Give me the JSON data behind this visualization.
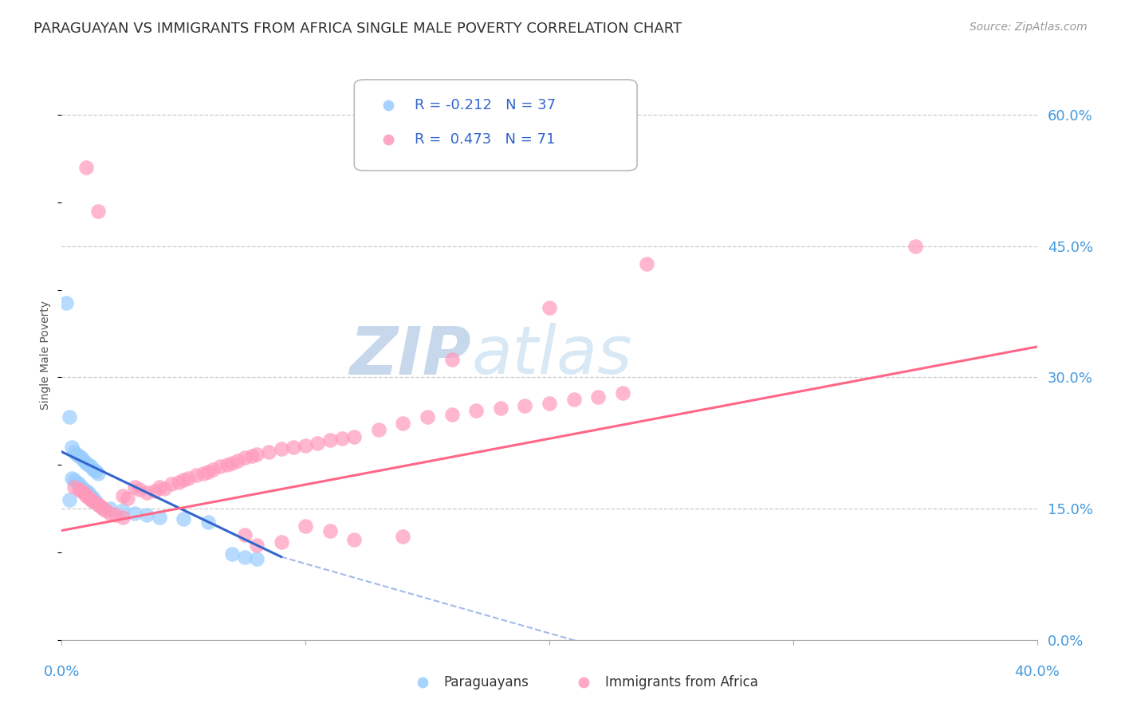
{
  "title": "PARAGUAYAN VS IMMIGRANTS FROM AFRICA SINGLE MALE POVERTY CORRELATION CHART",
  "source": "Source: ZipAtlas.com",
  "ylabel": "Single Male Poverty",
  "ytick_labels": [
    "0.0%",
    "15.0%",
    "30.0%",
    "45.0%",
    "60.0%"
  ],
  "ytick_values": [
    0.0,
    0.15,
    0.3,
    0.45,
    0.6
  ],
  "xtick_labels": [
    "0.0%",
    "40.0%"
  ],
  "xlim": [
    0.0,
    0.4
  ],
  "ylim": [
    0.0,
    0.65
  ],
  "blue_color": "#99CCFF",
  "pink_color": "#FF99BB",
  "blue_line_color": "#3366CC",
  "pink_line_color": "#FF6688",
  "grid_color": "#CCCCCC",
  "title_fontsize": 13,
  "source_fontsize": 10,
  "axis_label_fontsize": 10,
  "tick_fontsize": 13,
  "legend_fontsize": 13,
  "watermark_fontsize": 60,
  "watermark_color": "#E0E8F8",
  "background_color": "#FFFFFF",
  "blue_pts": [
    [
      0.002,
      0.385
    ],
    [
      0.003,
      0.255
    ],
    [
      0.004,
      0.22
    ],
    [
      0.005,
      0.215
    ],
    [
      0.006,
      0.212
    ],
    [
      0.007,
      0.21
    ],
    [
      0.008,
      0.208
    ],
    [
      0.009,
      0.205
    ],
    [
      0.01,
      0.202
    ],
    [
      0.011,
      0.2
    ],
    [
      0.012,
      0.198
    ],
    [
      0.013,
      0.195
    ],
    [
      0.014,
      0.193
    ],
    [
      0.015,
      0.19
    ],
    [
      0.004,
      0.185
    ],
    [
      0.005,
      0.183
    ],
    [
      0.006,
      0.18
    ],
    [
      0.007,
      0.178
    ],
    [
      0.008,
      0.175
    ],
    [
      0.009,
      0.172
    ],
    [
      0.01,
      0.17
    ],
    [
      0.011,
      0.168
    ],
    [
      0.012,
      0.165
    ],
    [
      0.013,
      0.162
    ],
    [
      0.003,
      0.16
    ],
    [
      0.014,
      0.158
    ],
    [
      0.015,
      0.155
    ],
    [
      0.02,
      0.15
    ],
    [
      0.025,
      0.148
    ],
    [
      0.03,
      0.145
    ],
    [
      0.035,
      0.143
    ],
    [
      0.04,
      0.14
    ],
    [
      0.05,
      0.138
    ],
    [
      0.06,
      0.135
    ],
    [
      0.07,
      0.098
    ],
    [
      0.075,
      0.095
    ],
    [
      0.08,
      0.093
    ]
  ],
  "pink_pts": [
    [
      0.01,
      0.54
    ],
    [
      0.015,
      0.49
    ],
    [
      0.005,
      0.175
    ],
    [
      0.007,
      0.172
    ],
    [
      0.008,
      0.17
    ],
    [
      0.009,
      0.168
    ],
    [
      0.01,
      0.165
    ],
    [
      0.011,
      0.163
    ],
    [
      0.012,
      0.16
    ],
    [
      0.013,
      0.158
    ],
    [
      0.015,
      0.155
    ],
    [
      0.016,
      0.153
    ],
    [
      0.017,
      0.15
    ],
    [
      0.018,
      0.148
    ],
    [
      0.02,
      0.145
    ],
    [
      0.022,
      0.143
    ],
    [
      0.025,
      0.165
    ],
    [
      0.027,
      0.162
    ],
    [
      0.03,
      0.175
    ],
    [
      0.032,
      0.172
    ],
    [
      0.035,
      0.168
    ],
    [
      0.038,
      0.17
    ],
    [
      0.04,
      0.175
    ],
    [
      0.042,
      0.173
    ],
    [
      0.045,
      0.178
    ],
    [
      0.048,
      0.18
    ],
    [
      0.05,
      0.183
    ],
    [
      0.052,
      0.185
    ],
    [
      0.055,
      0.188
    ],
    [
      0.058,
      0.19
    ],
    [
      0.06,
      0.192
    ],
    [
      0.062,
      0.195
    ],
    [
      0.065,
      0.198
    ],
    [
      0.068,
      0.2
    ],
    [
      0.07,
      0.202
    ],
    [
      0.072,
      0.205
    ],
    [
      0.075,
      0.208
    ],
    [
      0.078,
      0.21
    ],
    [
      0.08,
      0.212
    ],
    [
      0.085,
      0.215
    ],
    [
      0.09,
      0.218
    ],
    [
      0.095,
      0.22
    ],
    [
      0.1,
      0.222
    ],
    [
      0.105,
      0.225
    ],
    [
      0.11,
      0.228
    ],
    [
      0.115,
      0.23
    ],
    [
      0.12,
      0.232
    ],
    [
      0.13,
      0.24
    ],
    [
      0.14,
      0.248
    ],
    [
      0.15,
      0.255
    ],
    [
      0.16,
      0.258
    ],
    [
      0.17,
      0.262
    ],
    [
      0.18,
      0.265
    ],
    [
      0.19,
      0.268
    ],
    [
      0.2,
      0.27
    ],
    [
      0.21,
      0.275
    ],
    [
      0.22,
      0.278
    ],
    [
      0.23,
      0.282
    ],
    [
      0.16,
      0.32
    ],
    [
      0.2,
      0.38
    ],
    [
      0.24,
      0.43
    ],
    [
      0.35,
      0.45
    ],
    [
      0.075,
      0.12
    ],
    [
      0.1,
      0.13
    ],
    [
      0.12,
      0.115
    ],
    [
      0.14,
      0.118
    ],
    [
      0.08,
      0.108
    ],
    [
      0.09,
      0.112
    ],
    [
      0.11,
      0.125
    ],
    [
      0.025,
      0.14
    ]
  ],
  "blue_line": [
    [
      0.0,
      0.215
    ],
    [
      0.09,
      0.095
    ]
  ],
  "blue_line_dash": [
    [
      0.09,
      0.095
    ],
    [
      0.26,
      -0.04
    ]
  ],
  "pink_line": [
    [
      0.0,
      0.125
    ],
    [
      0.4,
      0.335
    ]
  ]
}
